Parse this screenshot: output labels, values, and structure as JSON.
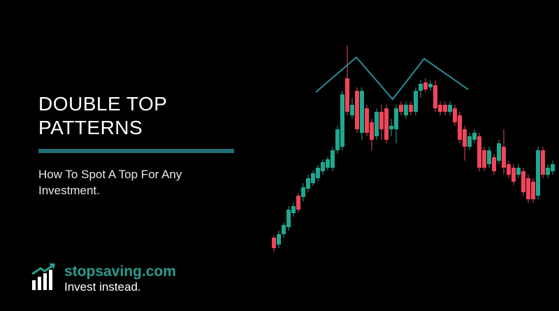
{
  "title": {
    "lines": [
      "DOUBLE TOP",
      "PATTERNS"
    ]
  },
  "subtitle": "How To Spot A Top For Any Investment.",
  "brand": {
    "name": "stopsaving.com",
    "tagline": "Invest instead."
  }
}
